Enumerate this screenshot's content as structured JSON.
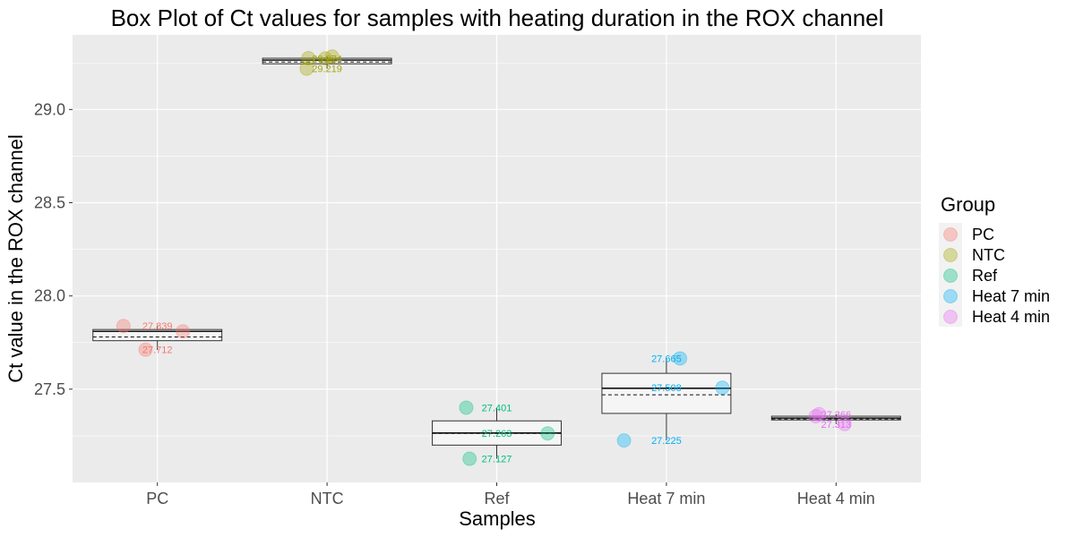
{
  "chart_data": {
    "type": "box",
    "title": "Box Plot of Ct values for samples with heating duration in the ROX channel",
    "xlabel": "Samples",
    "ylabel": "Ct value in the ROX channel",
    "categories": [
      "PC",
      "NTC",
      "Ref",
      "Heat 7 min",
      "Heat 4 min"
    ],
    "ylim": [
      27.0,
      29.4
    ],
    "yticks": [
      27.5,
      28.0,
      28.5,
      29.0
    ],
    "ytick_labels": [
      "27.5",
      "28.0",
      "28.5",
      "29.0"
    ],
    "grid": true,
    "legend_title": "Group",
    "legend_position": "right",
    "series": [
      {
        "name": "PC",
        "color": "#F8766D",
        "box": {
          "q1": 27.76,
          "median": 27.81,
          "q3": 27.82,
          "mean": 27.78,
          "whisker_low": 27.71,
          "whisker_high": 27.84
        },
        "points": [
          {
            "x_offset": -0.2,
            "y": 27.839
          },
          {
            "x_offset": -0.07,
            "y": 27.712
          },
          {
            "x_offset": 0.15,
            "y": 27.81
          }
        ],
        "labels": [
          {
            "text": "27.839",
            "y": 27.839,
            "x_offset": 0.0
          },
          {
            "text": "27.712",
            "y": 27.712,
            "x_offset": 0.0
          }
        ]
      },
      {
        "name": "NTC",
        "color": "#A3A500",
        "box": {
          "q1": 29.245,
          "median": 29.265,
          "q3": 29.275,
          "mean": 29.255,
          "whisker_low": 29.219,
          "whisker_high": 29.284
        },
        "points": [
          {
            "x_offset": -0.12,
            "y": 29.219
          },
          {
            "x_offset": -0.11,
            "y": 29.275
          },
          {
            "x_offset": 0.03,
            "y": 29.284
          },
          {
            "x_offset": -0.01,
            "y": 29.274
          }
        ],
        "labels": [
          {
            "text": "29.274",
            "y": 29.274,
            "x_offset": 0.0
          },
          {
            "text": "29.219",
            "y": 29.219,
            "x_offset": 0.0
          }
        ]
      },
      {
        "name": "Ref",
        "color": "#00BF7D",
        "box": {
          "q1": 27.2,
          "median": 27.265,
          "q3": 27.33,
          "mean": 27.263,
          "whisker_low": 27.127,
          "whisker_high": 27.401
        },
        "points": [
          {
            "x_offset": -0.18,
            "y": 27.401
          },
          {
            "x_offset": 0.3,
            "y": 27.263
          },
          {
            "x_offset": -0.16,
            "y": 27.127
          }
        ],
        "labels": [
          {
            "text": "27.401",
            "y": 27.401,
            "x_offset": 0.0
          },
          {
            "text": "27.263",
            "y": 27.263,
            "x_offset": 0.0
          },
          {
            "text": "27.127",
            "y": 27.127,
            "x_offset": 0.0
          }
        ]
      },
      {
        "name": "Heat 7 min",
        "color": "#00B0F6",
        "box": {
          "q1": 27.37,
          "median": 27.505,
          "q3": 27.585,
          "mean": 27.47,
          "whisker_low": 27.225,
          "whisker_high": 27.665
        },
        "points": [
          {
            "x_offset": 0.08,
            "y": 27.665
          },
          {
            "x_offset": 0.33,
            "y": 27.508
          },
          {
            "x_offset": -0.25,
            "y": 27.225
          }
        ],
        "labels": [
          {
            "text": "27.665",
            "y": 27.665,
            "x_offset": 0.0
          },
          {
            "text": "27.508",
            "y": 27.508,
            "x_offset": 0.0
          },
          {
            "text": "27.225",
            "y": 27.225,
            "x_offset": 0.0
          }
        ]
      },
      {
        "name": "Heat 4 min",
        "color": "#E76BF3",
        "box": {
          "q1": 27.335,
          "median": 27.345,
          "q3": 27.355,
          "mean": 27.34,
          "whisker_low": 27.313,
          "whisker_high": 27.366
        },
        "points": [
          {
            "x_offset": -0.12,
            "y": 27.355
          },
          {
            "x_offset": -0.1,
            "y": 27.366
          },
          {
            "x_offset": 0.05,
            "y": 27.313
          }
        ],
        "labels": [
          {
            "text": "27.366",
            "y": 27.366,
            "x_offset": 0.0
          },
          {
            "text": "27.313",
            "y": 27.313,
            "x_offset": 0.0
          }
        ]
      }
    ]
  }
}
